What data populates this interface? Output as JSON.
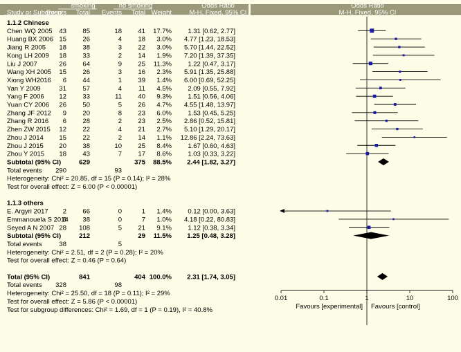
{
  "header": {
    "group1": "smoking",
    "group2": "no smoking",
    "or_title_left": "Odds Ratio",
    "or_title_right": "Odds Ratio",
    "col_study": "Study or Subgroup",
    "col_events": "Events",
    "col_total": "Total",
    "col_weight": "Weight",
    "col_method_left": "M-H, Fixed, 95% CI",
    "col_method_right": "M-H, Fixed, 95% CI"
  },
  "chart_data": {
    "type": "forest",
    "xlim": [
      0.01,
      100
    ],
    "x_scale": "log",
    "x_ticks": [
      0.01,
      0.1,
      1,
      10,
      100
    ],
    "x_tick_labels": [
      "0.01",
      "0.1",
      "1",
      "10",
      "100"
    ],
    "favours_left": "Favours [experimental]",
    "favours_right": "Favours [control]",
    "subgroups": [
      {
        "title": "1.1.2 Chinese",
        "studies": [
          {
            "name": "Chen WQ 2005",
            "e1": "43",
            "t1": "85",
            "e2": "18",
            "t2": "41",
            "weight": "17.7%",
            "ci_text": "1.31 [0.62, 2.77]",
            "or": 1.31,
            "lo": 0.62,
            "hi": 2.77
          },
          {
            "name": "Huang BX 2006",
            "e1": "15",
            "t1": "26",
            "e2": "4",
            "t2": "18",
            "weight": "3.0%",
            "ci_text": "4.77 [1.23, 18.53]",
            "or": 4.77,
            "lo": 1.23,
            "hi": 18.53
          },
          {
            "name": "Jiang R 2005",
            "e1": "18",
            "t1": "38",
            "e2": "3",
            "t2": "22",
            "weight": "3.0%",
            "ci_text": "5.70 [1.44, 22.52]",
            "or": 5.7,
            "lo": 1.44,
            "hi": 22.52
          },
          {
            "name": "Kong LH 2009",
            "e1": "18",
            "t1": "33",
            "e2": "2",
            "t2": "14",
            "weight": "1.9%",
            "ci_text": "7.20 [1.39, 37.35]",
            "or": 7.2,
            "lo": 1.39,
            "hi": 37.35
          },
          {
            "name": "Liu J 2007",
            "e1": "26",
            "t1": "64",
            "e2": "9",
            "t2": "25",
            "weight": "11.3%",
            "ci_text": "1.22 [0.47, 3.17]",
            "or": 1.22,
            "lo": 0.47,
            "hi": 3.17
          },
          {
            "name": "Wang XH 2005",
            "e1": "15",
            "t1": "26",
            "e2": "3",
            "t2": "16",
            "weight": "2.3%",
            "ci_text": "5.91 [1.35, 25.88]",
            "or": 5.91,
            "lo": 1.35,
            "hi": 25.88
          },
          {
            "name": "Xiong WH2016",
            "e1": "6",
            "t1": "44",
            "e2": "1",
            "t2": "39",
            "weight": "1.4%",
            "ci_text": "6.00 [0.69, 52.25]",
            "or": 6.0,
            "lo": 0.69,
            "hi": 52.25
          },
          {
            "name": "Yan Y 2009",
            "e1": "31",
            "t1": "57",
            "e2": "4",
            "t2": "11",
            "weight": "4.5%",
            "ci_text": "2.09 [0.55, 7.92]",
            "or": 2.09,
            "lo": 0.55,
            "hi": 7.92
          },
          {
            "name": "Yang F 2006",
            "e1": "12",
            "t1": "33",
            "e2": "11",
            "t2": "40",
            "weight": "9.3%",
            "ci_text": "1.51 [0.56, 4.06]",
            "or": 1.51,
            "lo": 0.56,
            "hi": 4.06
          },
          {
            "name": "Yuan CY 2006",
            "e1": "26",
            "t1": "50",
            "e2": "5",
            "t2": "26",
            "weight": "4.7%",
            "ci_text": "4.55 [1.48, 13.97]",
            "or": 4.55,
            "lo": 1.48,
            "hi": 13.97
          },
          {
            "name": "Zhang JF 2012",
            "e1": "9",
            "t1": "20",
            "e2": "8",
            "t2": "23",
            "weight": "6.0%",
            "ci_text": "1.53 [0.45, 5.25]",
            "or": 1.53,
            "lo": 0.45,
            "hi": 5.25
          },
          {
            "name": "Zhang R 2016",
            "e1": "6",
            "t1": "28",
            "e2": "2",
            "t2": "23",
            "weight": "2.5%",
            "ci_text": "2.86 [0.52, 15.81]",
            "or": 2.86,
            "lo": 0.52,
            "hi": 15.81
          },
          {
            "name": "Zhen ZW 2015",
            "e1": "12",
            "t1": "22",
            "e2": "4",
            "t2": "21",
            "weight": "2.7%",
            "ci_text": "5.10 [1.29, 20.17]",
            "or": 5.1,
            "lo": 1.29,
            "hi": 20.17
          },
          {
            "name": "Zhou J 2014",
            "e1": "15",
            "t1": "22",
            "e2": "2",
            "t2": "14",
            "weight": "1.1%",
            "ci_text": "12.86 [2.24, 73.63]",
            "or": 12.86,
            "lo": 2.24,
            "hi": 73.63
          },
          {
            "name": "Zhou J 2015",
            "e1": "20",
            "t1": "38",
            "e2": "10",
            "t2": "25",
            "weight": "8.4%",
            "ci_text": "1.67 [0.60, 4.63]",
            "or": 1.67,
            "lo": 0.6,
            "hi": 4.63
          },
          {
            "name": "Zhou Y 2015",
            "e1": "18",
            "t1": "43",
            "e2": "7",
            "t2": "17",
            "weight": "8.6%",
            "ci_text": "1.03 [0.33, 3.22]",
            "or": 1.03,
            "lo": 0.33,
            "hi": 3.22
          }
        ],
        "subtotal": {
          "label": "Subtotal (95% CI)",
          "t1": "629",
          "t2": "375",
          "weight": "88.5%",
          "ci_text": "2.44 [1.82, 3.27]",
          "or": 2.44,
          "lo": 1.82,
          "hi": 3.27
        },
        "total_events": {
          "label": "Total events",
          "e1": "290",
          "e2": "93"
        },
        "heterogeneity": "Heterogeneity: Chi² = 20.85, df = 15 (P = 0.14); I² = 28%",
        "overall_effect": "Test for overall effect: Z = 6.00 (P < 0.00001)"
      },
      {
        "title": "1.1.3 others",
        "studies": [
          {
            "name": "E. Argyri 2017",
            "e1": "2",
            "t1": "66",
            "e2": "0",
            "t2": "1",
            "weight": "1.4%",
            "ci_text": "0.12 [0.00, 3.63]",
            "or": 0.12,
            "lo": 0.004,
            "hi": 3.63,
            "arrow_left": true
          },
          {
            "name": "Emmanouela S 2014",
            "e1": "8",
            "t1": "38",
            "e2": "0",
            "t2": "7",
            "weight": "1.0%",
            "ci_text": "4.18 [0.22, 80.83]",
            "or": 4.18,
            "lo": 0.22,
            "hi": 80.83
          },
          {
            "name": "Seyed A N 2007",
            "e1": "28",
            "t1": "108",
            "e2": "5",
            "t2": "21",
            "weight": "9.1%",
            "ci_text": "1.12 [0.38, 3.34]",
            "or": 1.12,
            "lo": 0.38,
            "hi": 3.34
          }
        ],
        "subtotal": {
          "label": "Subtotal (95% CI)",
          "t1": "212",
          "t2": "29",
          "weight": "11.5%",
          "ci_text": "1.25 [0.48, 3.28]",
          "or": 1.25,
          "lo": 0.48,
          "hi": 3.28
        },
        "total_events": {
          "label": "Total events",
          "e1": "38",
          "e2": "5"
        },
        "heterogeneity": "Heterogeneity: Chi² = 2.51, df = 2 (P = 0.28); I² = 20%",
        "overall_effect": "Test for overall effect: Z = 0.46 (P = 0.64)"
      }
    ],
    "total": {
      "label": "Total (95% CI)",
      "t1": "841",
      "t2": "404",
      "weight": "100.0%",
      "ci_text": "2.31 [1.74, 3.05]",
      "or": 2.31,
      "lo": 1.74,
      "hi": 3.05
    },
    "total_events": {
      "label": "Total events",
      "e1": "328",
      "e2": "98"
    },
    "heterogeneity": "Heterogeneity: Chi² = 25.50, df = 18 (P = 0.11); I² = 29%",
    "overall_effect": "Test for overall effect: Z = 5.86 (P < 0.00001)",
    "subgroup_diff": "Test for subgroup differences: Chi² = 1.69, df = 1 (P = 0.19), I² = 40.8%",
    "colors": {
      "background": "#fdfce6",
      "header": "#9a9a7a",
      "square": "#1a1aa8",
      "line": "#000000"
    }
  }
}
